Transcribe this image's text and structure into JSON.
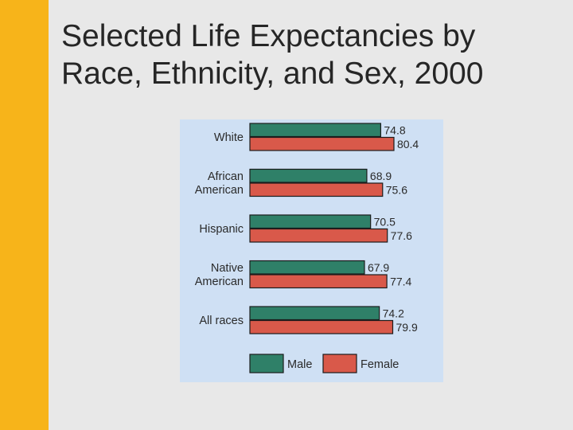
{
  "slide": {
    "title_line1": "Selected Life Expectancies by",
    "title_line2": "Race, Ethnicity, and Sex, 2000"
  },
  "colors": {
    "accent_bar": "#f7b41a",
    "panel_background": "#cfe0f4",
    "male": "#2f8068",
    "female": "#d9594a"
  },
  "chart_data": {
    "type": "bar",
    "orientation": "horizontal",
    "categories": [
      [
        "White"
      ],
      [
        "African",
        "American"
      ],
      [
        "Hispanic"
      ],
      [
        "Native",
        "American"
      ],
      [
        "All races"
      ]
    ],
    "series": [
      {
        "name": "Male",
        "values": [
          74.8,
          68.9,
          70.5,
          67.9,
          74.2
        ],
        "color": "#2f8068"
      },
      {
        "name": "Female",
        "values": [
          80.4,
          75.6,
          77.6,
          77.4,
          79.9
        ],
        "color": "#d9594a"
      }
    ],
    "data_labels": [
      [
        "74.8",
        "68.9",
        "70.5",
        "67.9",
        "74.2"
      ],
      [
        "80.4",
        "75.6",
        "77.6",
        "77.4",
        "79.9"
      ]
    ],
    "legend": [
      "Male",
      "Female"
    ],
    "legend_position": "bottom",
    "title": "",
    "xlabel": "",
    "ylabel": "",
    "grid": false
  }
}
